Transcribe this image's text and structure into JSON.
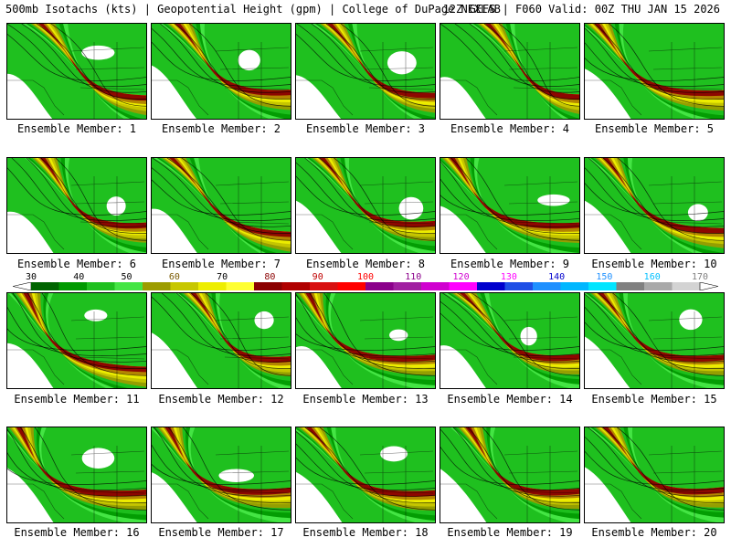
{
  "header": {
    "title": "500mb Isotachs (kts) | Geopotential Height (gpm) | College of DuPage NEXLAB",
    "run_info": "12Z GEFS | F060 Valid: 00Z THU JAN 15 2026"
  },
  "colorbar": {
    "labels": [
      {
        "text": "30",
        "color": "#000000"
      },
      {
        "text": "40",
        "color": "#000000"
      },
      {
        "text": "50",
        "color": "#000000"
      },
      {
        "text": "60",
        "color": "#7a5a00"
      },
      {
        "text": "70",
        "color": "#000000"
      },
      {
        "text": "80",
        "color": "#8b0000"
      },
      {
        "text": "90",
        "color": "#c00000"
      },
      {
        "text": "100",
        "color": "#ff0000"
      },
      {
        "text": "110",
        "color": "#8b008b"
      },
      {
        "text": "120",
        "color": "#d000d0"
      },
      {
        "text": "130",
        "color": "#ff00ff"
      },
      {
        "text": "140",
        "color": "#0000cd"
      },
      {
        "text": "150",
        "color": "#1e90ff"
      },
      {
        "text": "160",
        "color": "#00bfff"
      },
      {
        "text": "170",
        "color": "#808080"
      }
    ],
    "colors": [
      "#006400",
      "#009900",
      "#1fc01f",
      "#44e544",
      "#9c9c00",
      "#c7c700",
      "#eeee00",
      "#ffff33",
      "#8b0000",
      "#b00000",
      "#d81010",
      "#ff0000",
      "#8b008b",
      "#a020a0",
      "#d000d0",
      "#ff00ff",
      "#0000cd",
      "#1e4fe6",
      "#1e90ff",
      "#00b7ff",
      "#00e5ff",
      "#808080",
      "#a9a9a9",
      "#d3d3d3"
    ]
  },
  "members": [
    {
      "label": "Ensemble Member: 1"
    },
    {
      "label": "Ensemble Member: 2"
    },
    {
      "label": "Ensemble Member: 3"
    },
    {
      "label": "Ensemble Member: 4"
    },
    {
      "label": "Ensemble Member: 5"
    },
    {
      "label": "Ensemble Member: 6"
    },
    {
      "label": "Ensemble Member: 7"
    },
    {
      "label": "Ensemble Member: 8"
    },
    {
      "label": "Ensemble Member: 9"
    },
    {
      "label": "Ensemble Member: 10"
    },
    {
      "label": "Ensemble Member: 11"
    },
    {
      "label": "Ensemble Member: 12"
    },
    {
      "label": "Ensemble Member: 13"
    },
    {
      "label": "Ensemble Member: 14"
    },
    {
      "label": "Ensemble Member: 15"
    },
    {
      "label": "Ensemble Member: 16"
    },
    {
      "label": "Ensemble Member: 17"
    },
    {
      "label": "Ensemble Member: 18"
    },
    {
      "label": "Ensemble Member: 19"
    },
    {
      "label": "Ensemble Member: 20"
    }
  ]
}
